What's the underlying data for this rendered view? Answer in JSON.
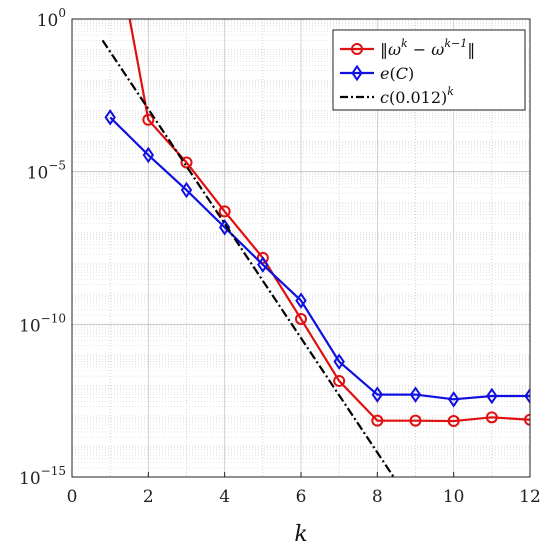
{
  "chart_data": {
    "type": "line",
    "xlabel": "k",
    "ylabel": "",
    "xlim": [
      0,
      12
    ],
    "ylim_exponents": [
      -15,
      0
    ],
    "y_scale": "log",
    "grid": true,
    "legend_position": "top-right",
    "x_ticks": [
      "0",
      "2",
      "4",
      "6",
      "8",
      "10",
      "12"
    ],
    "y_ticks": [
      {
        "base": "10",
        "exp": "0"
      },
      {
        "base": "10",
        "exp": "−5"
      },
      {
        "base": "10",
        "exp": "−10"
      },
      {
        "base": "10",
        "exp": "−15"
      }
    ],
    "series": [
      {
        "name": "‖ω^k − ω^{k−1}‖",
        "legend_parts": {
          "a": "‖",
          "b": "ω",
          "c": "k",
          "d": " − ",
          "e": "ω",
          "f": "k−1",
          "g": "‖"
        },
        "color": "#e01010",
        "marker": "circle",
        "x": [
          2,
          3,
          4,
          5,
          6,
          7,
          8,
          9,
          10,
          11,
          12
        ],
        "y": [
          0.0005,
          2e-05,
          5e-07,
          1.5e-08,
          1.5e-10,
          1.4e-12,
          7e-14,
          7e-14,
          6.8e-14,
          9e-14,
          7.5e-14
        ],
        "line_from": {
          "x": 1.5,
          "y": 1.2
        }
      },
      {
        "name": "e(C)",
        "legend_parts": {
          "a": "e",
          "b": "(",
          "c": "C",
          "d": ")"
        },
        "color": "#1010e0",
        "marker": "diamond",
        "x": [
          1,
          2,
          3,
          4,
          5,
          6,
          7,
          8,
          9,
          10,
          11,
          12
        ],
        "y": [
          0.0006,
          3.5e-05,
          2.5e-06,
          1.5e-07,
          9e-09,
          6e-10,
          6e-12,
          5e-13,
          5e-13,
          3.5e-13,
          4.5e-13,
          4.5e-13
        ]
      },
      {
        "name": "c(0.012)^k",
        "legend_parts": {
          "a": "c",
          "b": "(0.012)",
          "c": "k"
        },
        "color": "#000000",
        "marker": "none",
        "dash": "dashdot",
        "x": [
          0.8,
          8.8
        ],
        "y": [
          0.2,
          2e-16
        ]
      }
    ]
  }
}
